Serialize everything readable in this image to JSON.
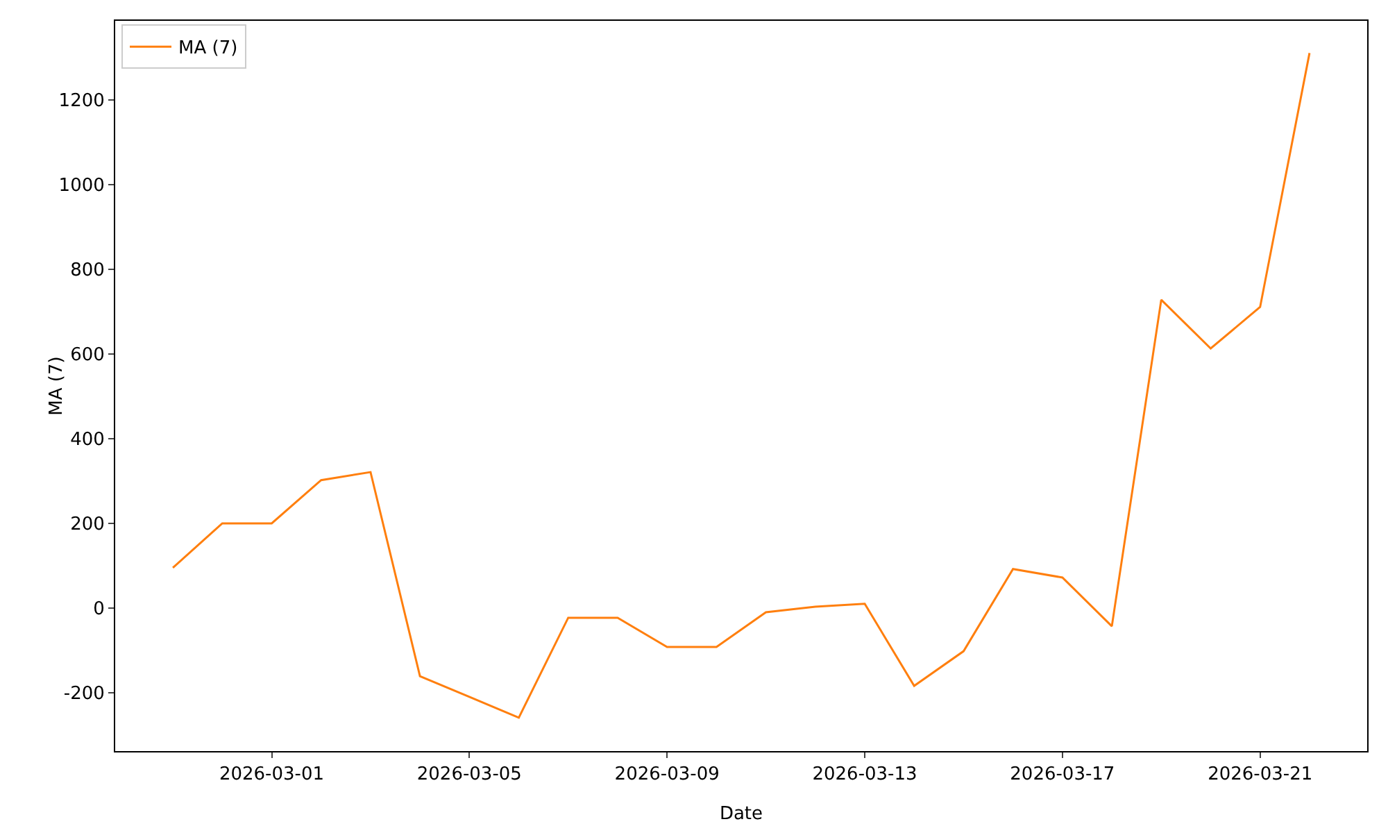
{
  "chart_data": {
    "type": "line",
    "xlabel": "Date",
    "ylabel": "MA (7)",
    "x": [
      "2026-02-27",
      "2026-02-28",
      "2026-03-01",
      "2026-03-02",
      "2026-03-03",
      "2026-03-04",
      "2026-03-05",
      "2026-03-06",
      "2026-03-07",
      "2026-03-08",
      "2026-03-09",
      "2026-03-10",
      "2026-03-11",
      "2026-03-12",
      "2026-03-13",
      "2026-03-14",
      "2026-03-15",
      "2026-03-16",
      "2026-03-17",
      "2026-03-18",
      "2026-03-19",
      "2026-03-20",
      "2026-03-21",
      "2026-03-22"
    ],
    "series": [
      {
        "name": "MA (7)",
        "color": "#ff7f0e",
        "values": [
          95,
          200,
          200,
          302,
          321,
          -161,
          -210,
          -259,
          -23,
          -23,
          -92,
          -92,
          -10,
          3,
          10,
          -184,
          -102,
          92,
          72,
          -43,
          728,
          613,
          711,
          1311
        ]
      }
    ],
    "xlim": [
      "2026-02-25T20:00",
      "2026-03-23T04:00"
    ],
    "xticks": [
      {
        "value": "2026-03-01",
        "label": "2026-03-01"
      },
      {
        "value": "2026-03-05",
        "label": "2026-03-05"
      },
      {
        "value": "2026-03-09",
        "label": "2026-03-09"
      },
      {
        "value": "2026-03-13",
        "label": "2026-03-13"
      },
      {
        "value": "2026-03-17",
        "label": "2026-03-17"
      },
      {
        "value": "2026-03-21",
        "label": "2026-03-21"
      }
    ],
    "ylim": [
      -338,
      1387
    ],
    "yticks": [
      -200,
      0,
      200,
      400,
      600,
      800,
      1000,
      1200
    ],
    "grid": false,
    "legend": "top left",
    "line_style": "solid",
    "marker": "none"
  }
}
